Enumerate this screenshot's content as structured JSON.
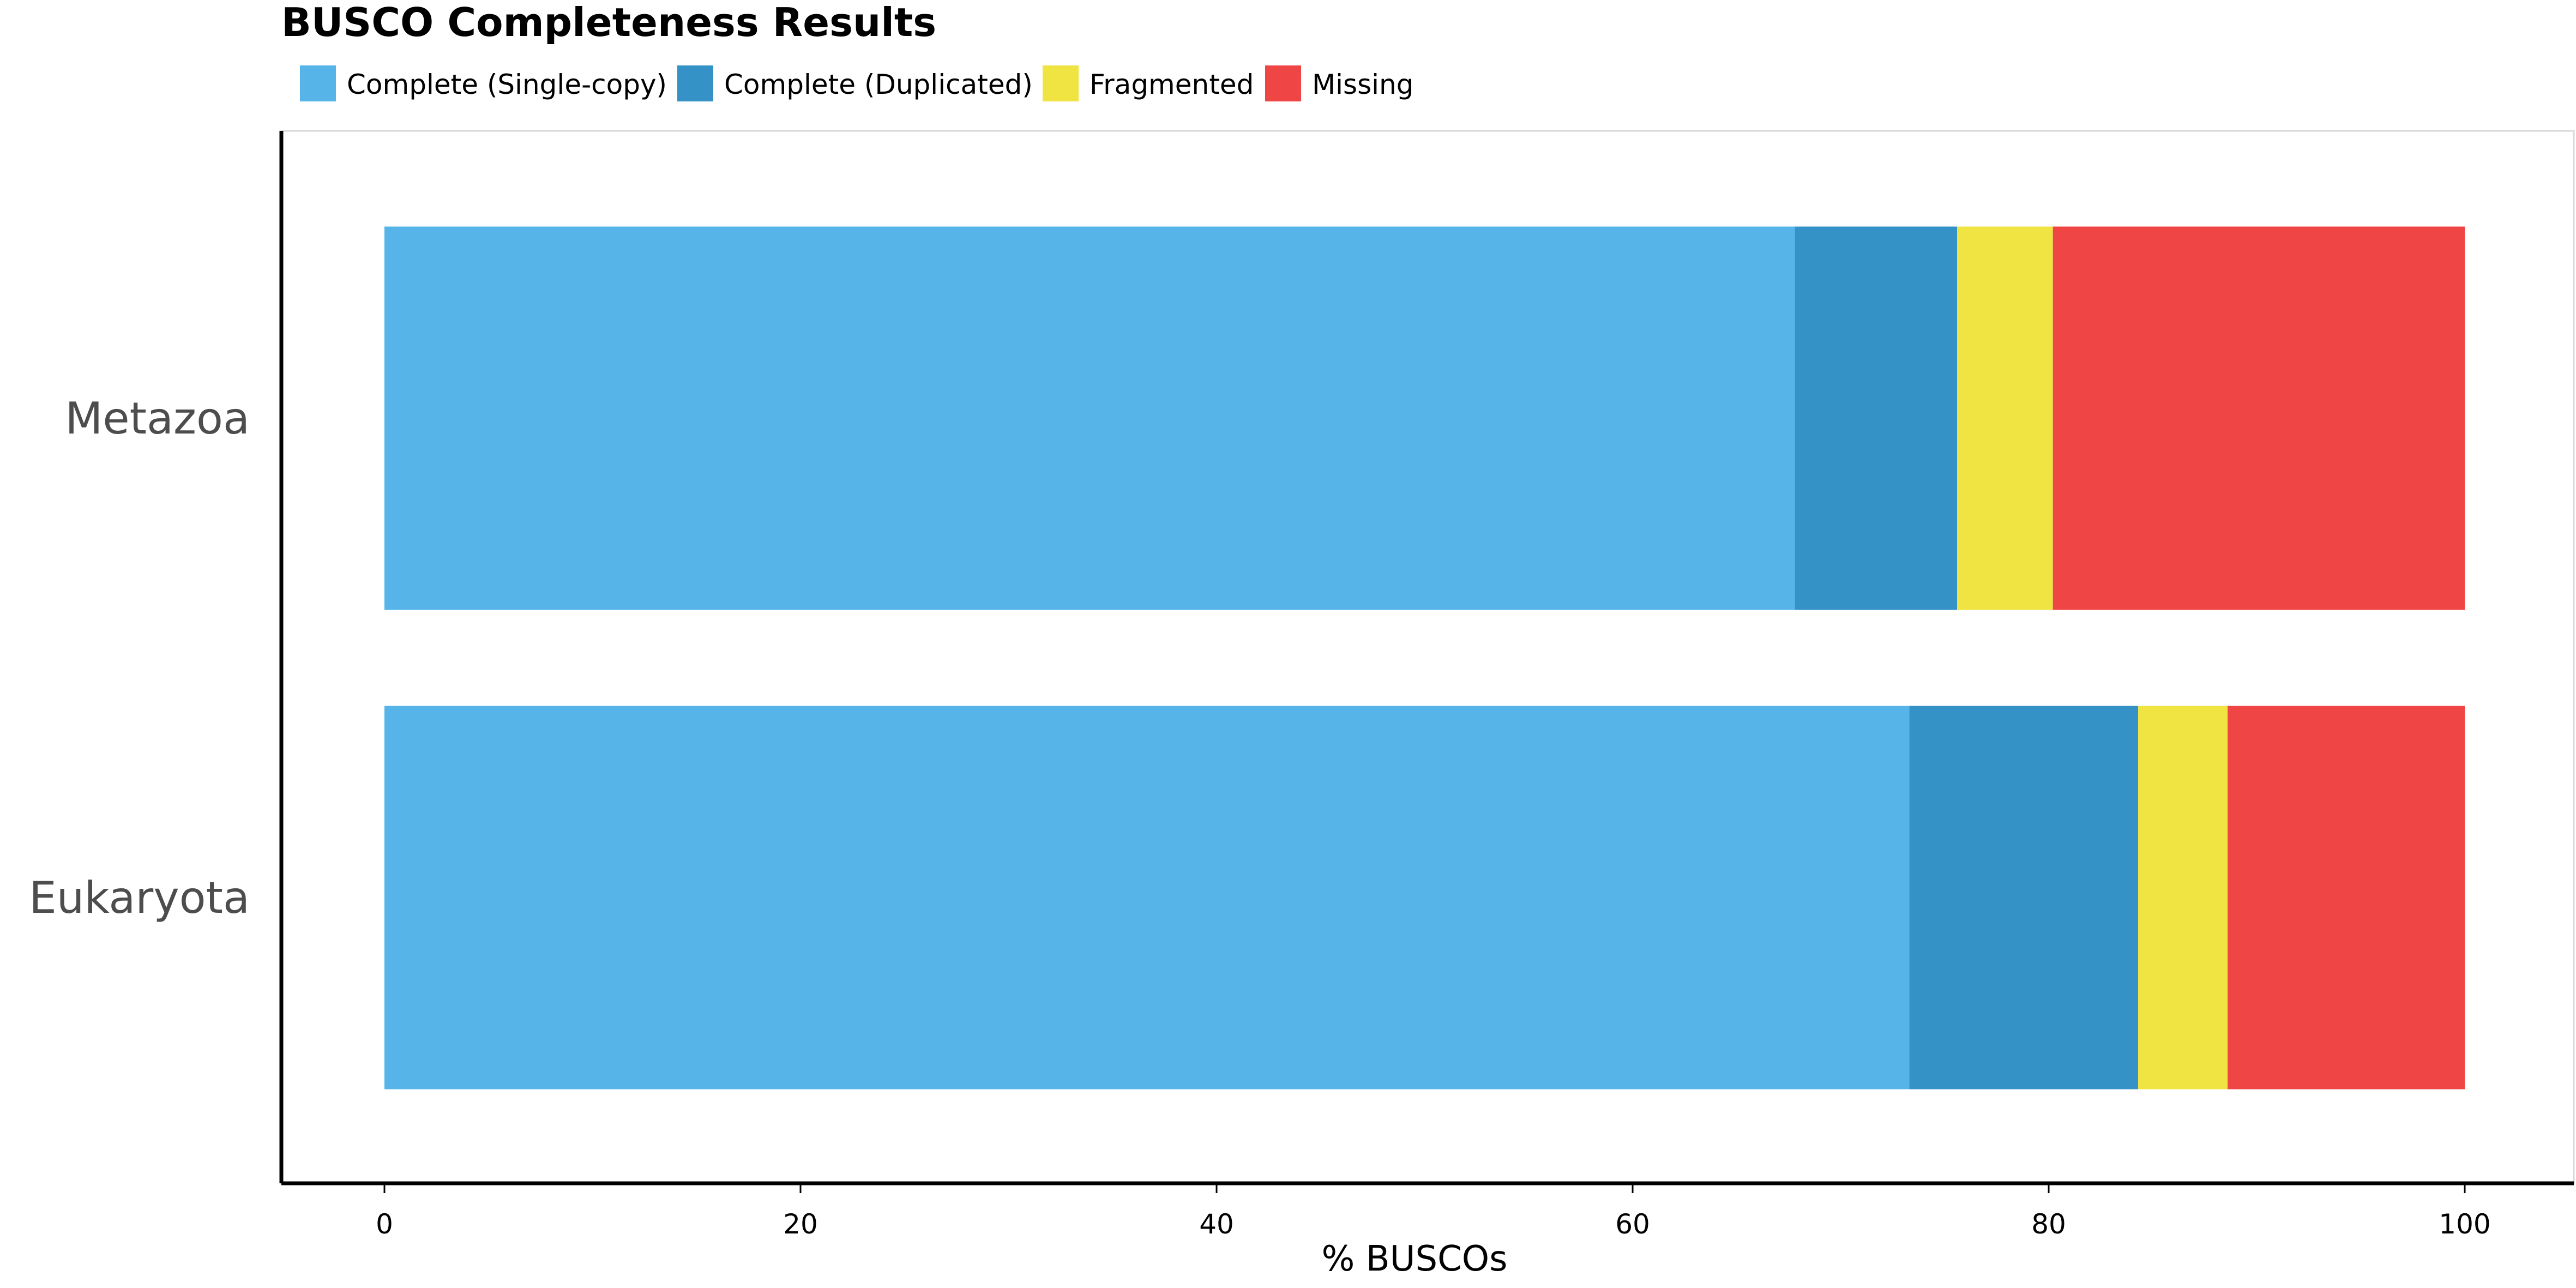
{
  "chart_data": {
    "type": "bar",
    "orientation": "horizontal",
    "stacked": true,
    "title": "BUSCO Completeness Results",
    "xlabel": "% BUSCOs",
    "ylabel": "",
    "xlim": [
      0,
      100
    ],
    "xticks": [
      "0",
      "20",
      "40",
      "60",
      "80",
      "100"
    ],
    "categories": [
      "Metazoa",
      "Eukaryota"
    ],
    "series": [
      {
        "name": "Complete (Single-copy)",
        "color": "#56B4E9",
        "values": [
          67.8,
          73.3
        ]
      },
      {
        "name": "Complete (Duplicated)",
        "color": "#3592C7",
        "values": [
          7.8,
          11.0
        ]
      },
      {
        "name": "Fragmented",
        "color": "#F0E442",
        "values": [
          4.6,
          4.3
        ]
      },
      {
        "name": "Missing",
        "color": "#F04545",
        "values": [
          19.8,
          11.4
        ]
      }
    ],
    "legend_position": "top-left",
    "grid": false
  }
}
